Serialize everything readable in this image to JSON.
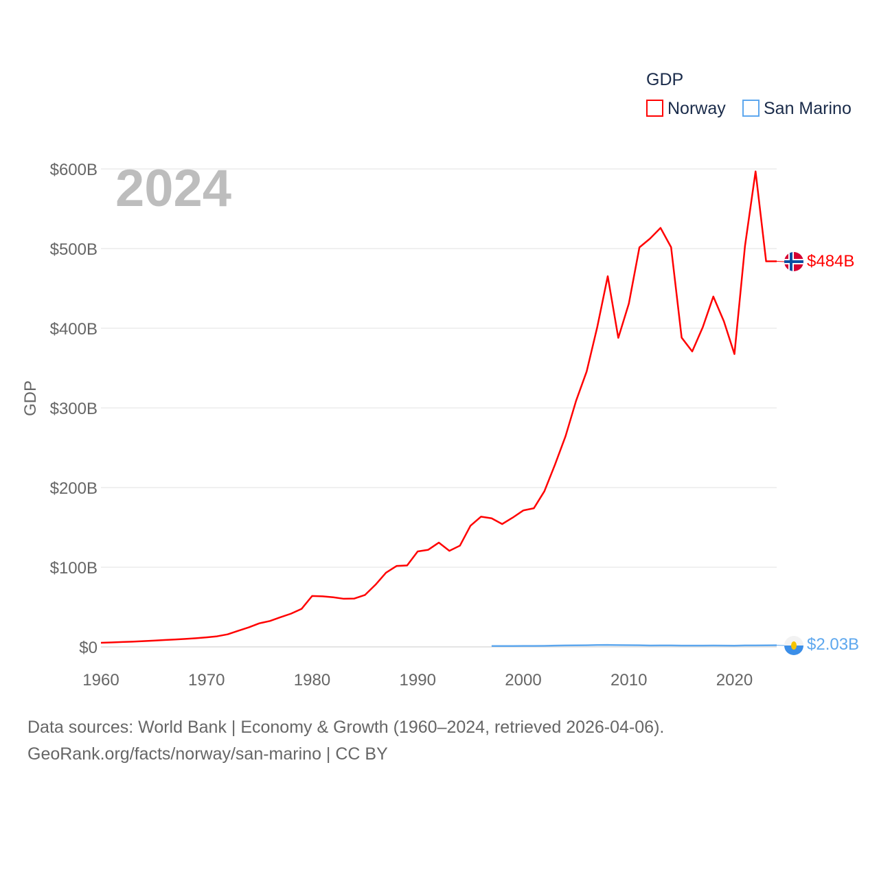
{
  "chart_data": {
    "type": "line",
    "title": "",
    "year_label": "2024",
    "xlabel": "",
    "ylabel": "GDP",
    "xlim": [
      1960,
      2024
    ],
    "ylim": [
      0,
      600
    ],
    "yunit": "billion USD",
    "grid": true,
    "x_ticks": [
      "1960",
      "1970",
      "1980",
      "1990",
      "2000",
      "2010",
      "2020"
    ],
    "x_tick_values": [
      1960,
      1970,
      1980,
      1990,
      2000,
      2010,
      2020
    ],
    "y_ticks": [
      "$0",
      "$100B",
      "$200B",
      "$300B",
      "$400B",
      "$500B",
      "$600B"
    ],
    "y_tick_values": [
      0,
      100,
      200,
      300,
      400,
      500,
      600
    ],
    "legend": {
      "title": "GDP",
      "placement": "top-right",
      "entries": [
        "Norway",
        "San Marino"
      ]
    },
    "series": [
      {
        "name": "Norway",
        "color": "#ff0000",
        "end_label": "$484B",
        "x": [
          1960,
          1961,
          1962,
          1963,
          1964,
          1965,
          1966,
          1967,
          1968,
          1969,
          1970,
          1971,
          1972,
          1973,
          1974,
          1975,
          1976,
          1977,
          1978,
          1979,
          1980,
          1981,
          1982,
          1983,
          1984,
          1985,
          1986,
          1987,
          1988,
          1989,
          1990,
          1991,
          1992,
          1993,
          1994,
          1995,
          1996,
          1997,
          1998,
          1999,
          2000,
          2001,
          2002,
          2003,
          2004,
          2005,
          2006,
          2007,
          2008,
          2009,
          2010,
          2011,
          2012,
          2013,
          2014,
          2015,
          2016,
          2017,
          2018,
          2019,
          2020,
          2021,
          2022,
          2023,
          2024
        ],
        "values": [
          5.2,
          5.6,
          6.1,
          6.6,
          7.2,
          7.9,
          8.6,
          9.3,
          10.0,
          10.9,
          12.0,
          13.3,
          15.8,
          20.2,
          24.5,
          29.6,
          32.5,
          37.2,
          41.7,
          47.7,
          63.9,
          63.5,
          62.3,
          60.4,
          60.7,
          65.1,
          78.0,
          93.2,
          101.6,
          102.3,
          119.8,
          121.9,
          130.9,
          120.6,
          127.1,
          152.1,
          163.5,
          161.4,
          154.2,
          162.3,
          171.3,
          174.0,
          195.4,
          228.7,
          264.4,
          308.9,
          345.6,
          401.1,
          465.3,
          387.9,
          431.0,
          501.5,
          512.5,
          526.0,
          501.7,
          388.2,
          370.9,
          401.3,
          439.8,
          408.7,
          367.6,
          503.4,
          596.9,
          484.0,
          484.0
        ]
      },
      {
        "name": "San Marino",
        "color": "#5da7ee",
        "end_label": "$2.03B",
        "x": [
          1997,
          1998,
          1999,
          2000,
          2001,
          2002,
          2003,
          2004,
          2005,
          2006,
          2007,
          2008,
          2009,
          2010,
          2011,
          2012,
          2013,
          2014,
          2015,
          2016,
          2017,
          2018,
          2019,
          2020,
          2021,
          2022,
          2023,
          2024
        ],
        "values": [
          1.03,
          1.08,
          1.13,
          1.14,
          1.16,
          1.27,
          1.57,
          1.79,
          1.9,
          2.03,
          2.34,
          2.47,
          2.23,
          2.13,
          2.06,
          1.77,
          1.82,
          1.84,
          1.57,
          1.6,
          1.59,
          1.69,
          1.67,
          1.56,
          1.85,
          1.84,
          1.91,
          2.03
        ]
      }
    ]
  },
  "footer": {
    "line1": "Data sources: World Bank | Economy & Growth (1960–2024, retrieved 2026-04-06).",
    "line2": "GeoRank.org/facts/norway/san-marino | CC BY"
  }
}
